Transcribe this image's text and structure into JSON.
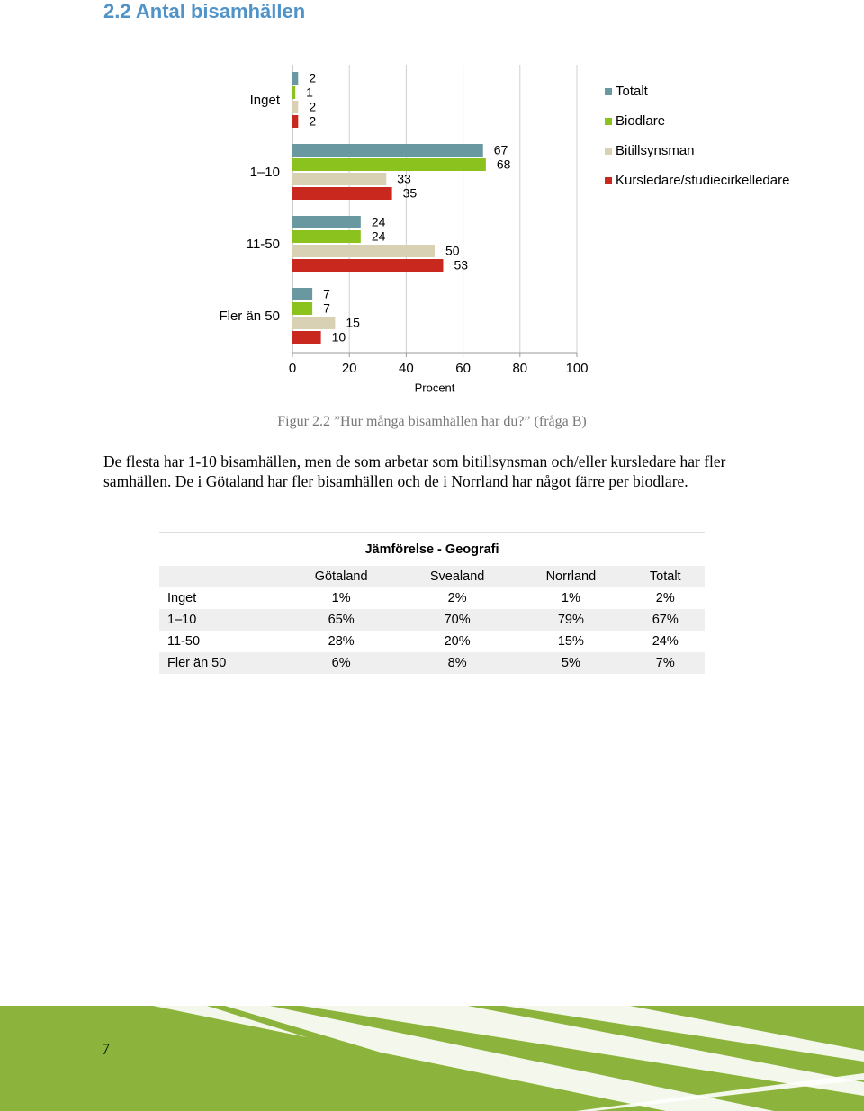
{
  "heading": "2.2 Antal bisamhällen",
  "chart_data": {
    "type": "hbar",
    "categories": [
      "Inget",
      "1–10",
      "11-50",
      "Fler än 50"
    ],
    "series": [
      {
        "name": "Totalt",
        "color": "#6a98a0",
        "values": [
          2,
          67,
          24,
          7
        ]
      },
      {
        "name": "Biodlare",
        "color": "#8cc21e",
        "values": [
          1,
          68,
          24,
          7
        ]
      },
      {
        "name": "Bitillsynsman",
        "color": "#d9d1b4",
        "values": [
          2,
          33,
          50,
          15
        ]
      },
      {
        "name": "Kursledare/studiecirkelledare",
        "color": "#c8281e",
        "values": [
          2,
          35,
          53,
          10
        ]
      }
    ],
    "xlabel": "Procent",
    "xlim": [
      0,
      100
    ],
    "xticks": [
      0,
      20,
      40,
      60,
      80,
      100
    ],
    "grid": true,
    "legend": "right"
  },
  "caption": "Figur 2.2 ”Hur många bisamhällen har du?” (fråga B)",
  "paragraph": "De flesta har 1-10 bisamhällen, men de som arbetar som bitillsynsman och/eller kursledare har fler samhällen. De i Götaland har fler bisamhällen och de i Norrland har något färre per biodlare.",
  "table": {
    "title": "Jämförelse - Geografi",
    "header": [
      "Götaland",
      "Svealand",
      "Norrland",
      "Totalt"
    ],
    "rows": [
      {
        "label": "Inget",
        "cells": [
          "1%",
          "2%",
          "1%",
          "2%"
        ]
      },
      {
        "label": "1–10",
        "cells": [
          "65%",
          "70%",
          "79%",
          "67%"
        ]
      },
      {
        "label": "11-50",
        "cells": [
          "28%",
          "20%",
          "15%",
          "24%"
        ]
      },
      {
        "label": "Fler än 50",
        "cells": [
          "6%",
          "8%",
          "5%",
          "7%"
        ]
      }
    ]
  },
  "page_number": "7"
}
